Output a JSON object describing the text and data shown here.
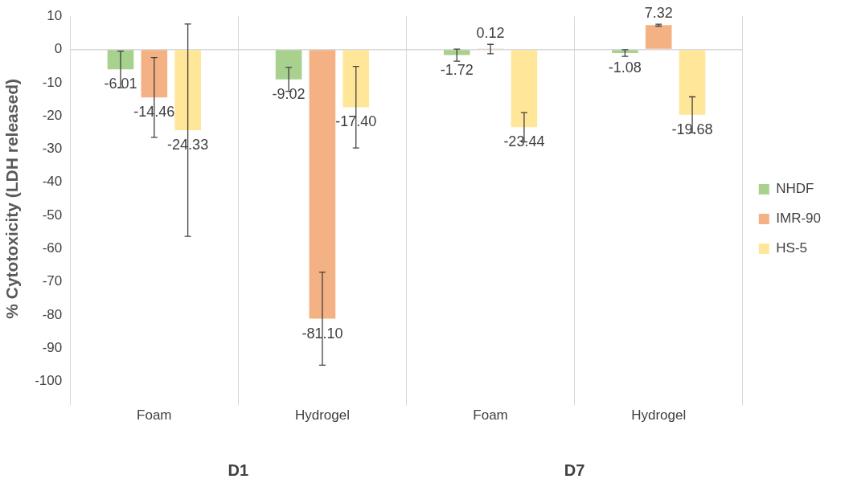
{
  "chart_data": {
    "type": "bar",
    "ylabel": "% Cytotoxicity (LDH released)",
    "categories": [
      "Foam",
      "Hydrogel",
      "Foam",
      "Hydrogel"
    ],
    "series": [
      {
        "name": "NHDF",
        "color": "#a9d18e",
        "values": [
          -6.01,
          -9.02,
          -1.72,
          -1.08
        ],
        "errors": [
          5.5,
          3.6,
          1.8,
          1
        ],
        "value_labels": [
          "-6.01",
          "-9.02",
          "-1.72",
          "-1.08"
        ]
      },
      {
        "name": "IMR-90",
        "color": "#f4b183",
        "values": [
          -14.46,
          -81.1,
          0.12,
          7.32
        ],
        "errors": [
          12,
          14,
          1.4,
          0.3
        ],
        "value_labels": [
          "-14.46",
          "-81.10",
          "0.12",
          "7.32"
        ]
      },
      {
        "name": "HS-5",
        "color": "#ffe699",
        "values": [
          -24.33,
          -17.4,
          -23.44,
          -19.68
        ],
        "errors": [
          32,
          12.3,
          4.4,
          5.4
        ],
        "value_labels": [
          "-24.33",
          "-17.40",
          "-23.44",
          "-19.68"
        ]
      }
    ],
    "ylim": [
      -100,
      10
    ],
    "yticks": [
      10,
      0,
      -10,
      -20,
      -30,
      -40,
      -50,
      -60,
      -70,
      -80,
      -90,
      -100
    ],
    "grid": "x",
    "legend": "right",
    "annotations": [
      "D1",
      "D7"
    ]
  }
}
